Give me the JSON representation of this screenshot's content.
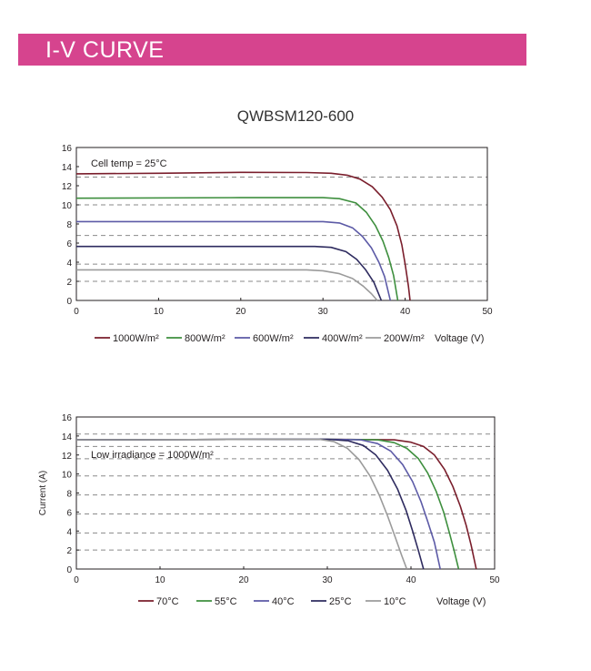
{
  "header": {
    "title": "I-V CURVE"
  },
  "model": "QWBSM120-600",
  "chart_data": [
    {
      "type": "line",
      "annotation": "Cell temp = 25°C",
      "xlabel": "Voltage (V)",
      "ylabel": "",
      "xlim": [
        0,
        50
      ],
      "ylim": [
        0,
        16
      ],
      "xticks": [
        0,
        10,
        20,
        30,
        40,
        50
      ],
      "yticks": [
        0,
        2,
        4,
        6,
        8,
        10,
        12,
        14,
        16
      ],
      "grid": "dashed horizontal",
      "legend": "bottom",
      "series": [
        {
          "name": "1000W/m²",
          "color": "#7a1e2c",
          "points": [
            [
              0,
              13.25
            ],
            [
              10,
              13.3
            ],
            [
              20,
              13.4
            ],
            [
              28,
              13.38
            ],
            [
              31,
              13.3
            ],
            [
              33,
              13.1
            ],
            [
              34.5,
              12.7
            ],
            [
              36,
              11.9
            ],
            [
              37.2,
              10.8
            ],
            [
              38.2,
              9.5
            ],
            [
              39,
              7.8
            ],
            [
              39.6,
              5.8
            ],
            [
              40,
              3.8
            ],
            [
              40.4,
              1.5
            ],
            [
              40.6,
              0
            ]
          ]
        },
        {
          "name": "800W/m²",
          "color": "#3e8f3e",
          "points": [
            [
              0,
              10.7
            ],
            [
              20,
              10.75
            ],
            [
              30,
              10.75
            ],
            [
              32,
              10.65
            ],
            [
              34,
              10.2
            ],
            [
              35.3,
              9.2
            ],
            [
              36.4,
              7.8
            ],
            [
              37.3,
              6.2
            ],
            [
              38,
              4.5
            ],
            [
              38.6,
              2.6
            ],
            [
              39.1,
              0
            ]
          ]
        },
        {
          "name": "600W/m²",
          "color": "#5c5aa6",
          "points": [
            [
              0,
              8.25
            ],
            [
              20,
              8.25
            ],
            [
              30,
              8.25
            ],
            [
              32,
              8.1
            ],
            [
              33.6,
              7.6
            ],
            [
              34.8,
              6.7
            ],
            [
              35.9,
              5.5
            ],
            [
              36.8,
              4.0
            ],
            [
              37.5,
              2.5
            ],
            [
              38.2,
              0
            ]
          ]
        },
        {
          "name": "400W/m²",
          "color": "#2e2b5f",
          "points": [
            [
              0,
              5.65
            ],
            [
              20,
              5.65
            ],
            [
              29,
              5.65
            ],
            [
              31,
              5.55
            ],
            [
              32.8,
              5.1
            ],
            [
              34.1,
              4.3
            ],
            [
              35.2,
              3.2
            ],
            [
              36.2,
              1.9
            ],
            [
              37.1,
              0
            ]
          ]
        },
        {
          "name": "200W/m²",
          "color": "#9b9b9b",
          "points": [
            [
              0,
              3.2
            ],
            [
              20,
              3.2
            ],
            [
              28,
              3.2
            ],
            [
              30,
              3.1
            ],
            [
              32,
              2.8
            ],
            [
              33.6,
              2.3
            ],
            [
              34.9,
              1.5
            ],
            [
              35.9,
              0.7
            ],
            [
              36.6,
              0
            ]
          ]
        }
      ],
      "legend_entries": [
        "1000W/m²",
        "800W/m²",
        "600W/m²",
        "400W/m²",
        "200W/m²",
        "Voltage (V)"
      ]
    },
    {
      "type": "line",
      "annotation": "Low irradiance = 1000W/m²",
      "xlabel": "Voltage (V)",
      "ylabel": "Current (A)",
      "xlim": [
        0,
        50
      ],
      "ylim": [
        0,
        16
      ],
      "xticks": [
        0,
        10,
        20,
        30,
        40,
        50
      ],
      "yticks": [
        0,
        2,
        4,
        6,
        8,
        10,
        12,
        14,
        16
      ],
      "grid": "dashed horizontal",
      "legend": "bottom",
      "series": [
        {
          "name": "70°C",
          "color": "#7a1e2c",
          "points": [
            [
              0,
              13.6
            ],
            [
              30,
              13.65
            ],
            [
              38,
              13.6
            ],
            [
              40,
              13.35
            ],
            [
              41.5,
              12.9
            ],
            [
              42.8,
              12.0
            ],
            [
              44,
              10.5
            ],
            [
              45,
              8.7
            ],
            [
              45.9,
              6.6
            ],
            [
              46.6,
              4.6
            ],
            [
              47.2,
              2.5
            ],
            [
              47.8,
              0
            ]
          ]
        },
        {
          "name": "55°C",
          "color": "#3e8f3e",
          "points": [
            [
              0,
              13.6
            ],
            [
              30,
              13.65
            ],
            [
              36,
              13.6
            ],
            [
              38,
              13.3
            ],
            [
              39.5,
              12.7
            ],
            [
              40.9,
              11.6
            ],
            [
              42,
              10.1
            ],
            [
              43,
              8.2
            ],
            [
              43.9,
              6.0
            ],
            [
              44.6,
              3.8
            ],
            [
              45.2,
              1.8
            ],
            [
              45.7,
              0
            ]
          ]
        },
        {
          "name": "40°C",
          "color": "#5c5aa6",
          "points": [
            [
              0,
              13.6
            ],
            [
              30,
              13.65
            ],
            [
              34,
              13.6
            ],
            [
              36,
              13.2
            ],
            [
              37.6,
              12.4
            ],
            [
              39,
              11.0
            ],
            [
              40.2,
              9.2
            ],
            [
              41.2,
              7.1
            ],
            [
              42,
              5.0
            ],
            [
              42.8,
              2.8
            ],
            [
              43.5,
              0
            ]
          ]
        },
        {
          "name": "25°C",
          "color": "#2e2b5f",
          "points": [
            [
              0,
              13.6
            ],
            [
              30,
              13.65
            ],
            [
              32.5,
              13.5
            ],
            [
              34.3,
              13.0
            ],
            [
              35.8,
              12.0
            ],
            [
              37.2,
              10.4
            ],
            [
              38.4,
              8.4
            ],
            [
              39.4,
              6.2
            ],
            [
              40.2,
              4.0
            ],
            [
              40.9,
              1.9
            ],
            [
              41.5,
              0
            ]
          ]
        },
        {
          "name": "10°C",
          "color": "#9b9b9b",
          "points": [
            [
              0,
              13.6
            ],
            [
              29,
              13.65
            ],
            [
              30.8,
              13.4
            ],
            [
              32.4,
              12.7
            ],
            [
              33.8,
              11.5
            ],
            [
              35.1,
              9.8
            ],
            [
              36.2,
              7.8
            ],
            [
              37.2,
              5.6
            ],
            [
              38.1,
              3.4
            ],
            [
              38.9,
              1.4
            ],
            [
              39.5,
              0
            ]
          ]
        }
      ],
      "legend_entries": [
        "70°C",
        "55°C",
        "40°C",
        "25°C",
        "10°C",
        "Voltage (V)"
      ]
    }
  ]
}
